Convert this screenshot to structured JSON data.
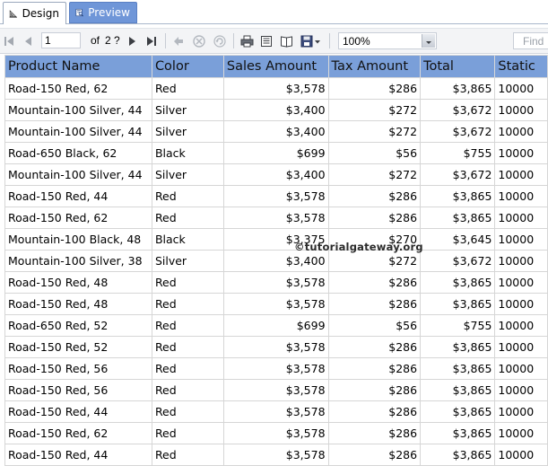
{
  "tabs": [
    {
      "label": "Design",
      "icon": "design-icon",
      "active": false
    },
    {
      "label": "Preview",
      "icon": "preview-icon",
      "active": true
    }
  ],
  "toolbar": {
    "current_page": "1",
    "page_of_label": "of",
    "total_pages": "2 ?",
    "zoom": "100%",
    "find_placeholder": "Find"
  },
  "table": {
    "columns": [
      "Product Name",
      "Color",
      "Sales Amount",
      "Tax Amount",
      "Total",
      "Static"
    ],
    "rows": [
      [
        "Road-150 Red, 62",
        "Red",
        "$3,578",
        "$286",
        "$3,865",
        "10000"
      ],
      [
        "Mountain-100 Silver, 44",
        "Silver",
        "$3,400",
        "$272",
        "$3,672",
        "10000"
      ],
      [
        "Mountain-100 Silver, 44",
        "Silver",
        "$3,400",
        "$272",
        "$3,672",
        "10000"
      ],
      [
        "Road-650 Black, 62",
        "Black",
        "$699",
        "$56",
        "$755",
        "10000"
      ],
      [
        "Mountain-100 Silver, 44",
        "Silver",
        "$3,400",
        "$272",
        "$3,672",
        "10000"
      ],
      [
        "Road-150 Red, 44",
        "Red",
        "$3,578",
        "$286",
        "$3,865",
        "10000"
      ],
      [
        "Road-150 Red, 62",
        "Red",
        "$3,578",
        "$286",
        "$3,865",
        "10000"
      ],
      [
        "Mountain-100 Black, 48",
        "Black",
        "$3,375",
        "$270",
        "$3,645",
        "10000"
      ],
      [
        "Mountain-100 Silver, 38",
        "Silver",
        "$3,400",
        "$272",
        "$3,672",
        "10000"
      ],
      [
        "Road-150 Red, 48",
        "Red",
        "$3,578",
        "$286",
        "$3,865",
        "10000"
      ],
      [
        "Road-150 Red, 48",
        "Red",
        "$3,578",
        "$286",
        "$3,865",
        "10000"
      ],
      [
        "Road-650 Red, 52",
        "Red",
        "$699",
        "$56",
        "$755",
        "10000"
      ],
      [
        "Road-150 Red, 52",
        "Red",
        "$3,578",
        "$286",
        "$3,865",
        "10000"
      ],
      [
        "Road-150 Red, 56",
        "Red",
        "$3,578",
        "$286",
        "$3,865",
        "10000"
      ],
      [
        "Road-150 Red, 56",
        "Red",
        "$3,578",
        "$286",
        "$3,865",
        "10000"
      ],
      [
        "Road-150 Red, 44",
        "Red",
        "$3,578",
        "$286",
        "$3,865",
        "10000"
      ],
      [
        "Road-150 Red, 62",
        "Red",
        "$3,578",
        "$286",
        "$3,865",
        "10000"
      ],
      [
        "Road-150 Red, 44",
        "Red",
        "$3,578",
        "$286",
        "$3,865",
        "10000"
      ]
    ]
  },
  "watermark": "©tutorialgateway.org",
  "colors": {
    "header_bg": "#7a9fd9",
    "active_tab_bg": "#6f96d8",
    "toolbar_bg": "#f3f4f6"
  }
}
